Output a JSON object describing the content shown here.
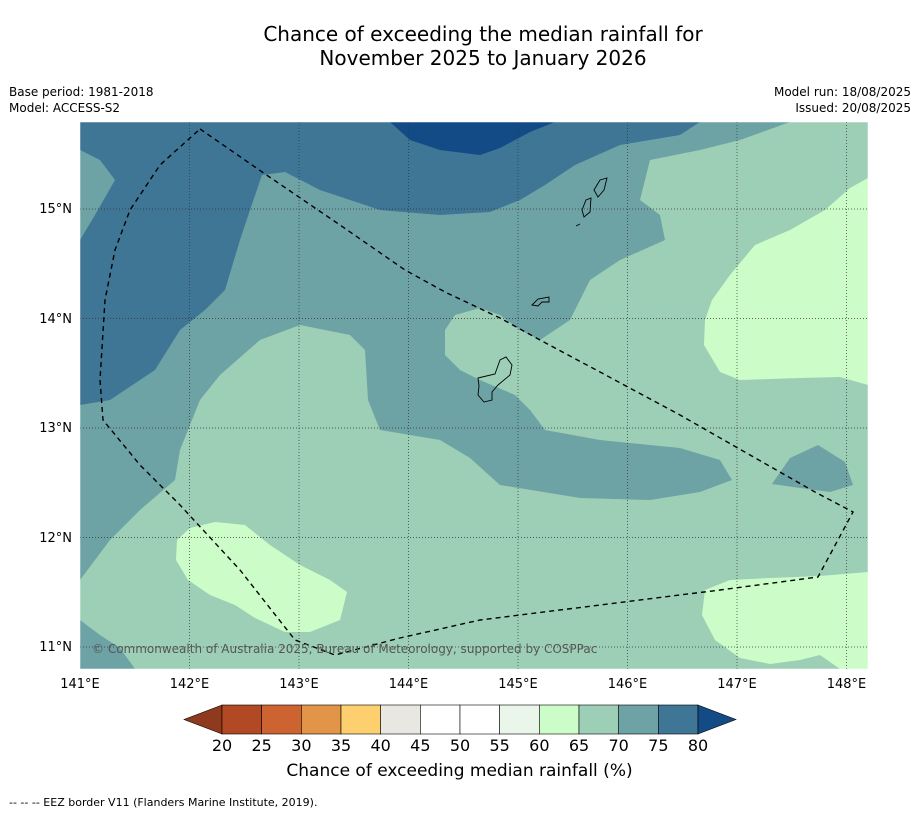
{
  "title_line1": "Chance of exceeding the median rainfall for",
  "title_line2": "November 2025 to January 2026",
  "meta": {
    "base_period": "Base period: 1981-2018",
    "model": "Model: ACCESS-S2",
    "model_run": "Model run: 18/08/2025",
    "issued": "Issued: 20/08/2025"
  },
  "copyright": "© Commonwealth of Australia 2025, Bureau of Meteorology, supported by COSPPac",
  "lat_labels": [
    "15°N",
    "14°N",
    "13°N",
    "12°N",
    "11°N"
  ],
  "lon_labels": [
    "141°E",
    "142°E",
    "143°E",
    "144°E",
    "145°E",
    "146°E",
    "147°E",
    "148°E"
  ],
  "colorbar": {
    "ticks": [
      "20",
      "25",
      "30",
      "35",
      "40",
      "45",
      "50",
      "55",
      "60",
      "65",
      "70",
      "75",
      "80"
    ],
    "colors": [
      "#8f3a1e",
      "#b14a24",
      "#cd6330",
      "#e29448",
      "#fdcf6e",
      "#e9e7e2",
      "#ffffff",
      "#ffffff",
      "#e9f6e9",
      "#ccfdc9",
      "#9dcfb6",
      "#6ea3a6",
      "#3f7696",
      "#124b85"
    ],
    "label": "Chance of exceeding median rainfall (%)"
  },
  "footnote": "--  --  -- EEZ border V11 (Flanders Marine Institute, 2019)."
}
